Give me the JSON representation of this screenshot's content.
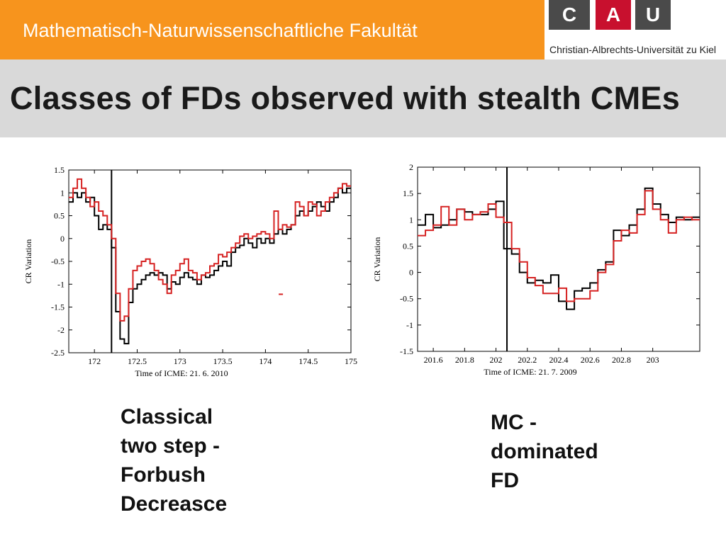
{
  "header": {
    "faculty": "Mathematisch-Naturwissenschaftliche Fakultät",
    "logo_letters": [
      "C",
      "A",
      "U"
    ],
    "university": "Christian-Albrechts-Universität zu Kiel",
    "colors": {
      "orange": "#f7941d",
      "logo_dark": "#4a4a4a",
      "logo_red": "#c8102e"
    }
  },
  "slide_title": "Classes of FDs observed with stealth CMEs",
  "captions": {
    "left": [
      "Classical",
      "two step -",
      "Forbush",
      "Decreasce"
    ],
    "right": [
      "MC -",
      "dominated",
      "FD"
    ]
  },
  "chart_data": [
    {
      "type": "line",
      "xlabel": "Time of ICME: 21. 6. 2010",
      "ylabel": "CR Variation",
      "xlim": [
        171.7,
        175
      ],
      "ylim": [
        -2.5,
        1.5
      ],
      "xticks": [
        172,
        172.5,
        173,
        173.5,
        174,
        174.5,
        175
      ],
      "xtick_labels": [
        "172",
        "172.5",
        "173",
        "173.5",
        "174",
        "174.5",
        "175"
      ],
      "yticks": [
        1.5,
        1,
        0.5,
        0,
        -0.5,
        -1,
        -1.5,
        -2,
        -2.5
      ],
      "ytick_labels": [
        "1.5",
        "1",
        "0.5",
        "0",
        "-0.5",
        "-1",
        "-1.5",
        "-2",
        "-2.5"
      ],
      "vline": 172.2,
      "step": true,
      "colors": [
        "#000000",
        "#d62222"
      ],
      "extra_mark": {
        "x": 174.18,
        "y": -1.22
      },
      "series": [
        {
          "x": [
            171.7,
            171.75,
            171.8,
            171.85,
            171.9,
            171.95,
            172,
            172.05,
            172.1,
            172.15,
            172.2,
            172.25,
            172.3,
            172.35,
            172.4,
            172.45,
            172.5,
            172.55,
            172.6,
            172.65,
            172.7,
            172.75,
            172.8,
            172.85,
            172.9,
            172.95,
            173,
            173.05,
            173.1,
            173.15,
            173.2,
            173.25,
            173.3,
            173.35,
            173.4,
            173.45,
            173.5,
            173.55,
            173.6,
            173.65,
            173.7,
            173.75,
            173.8,
            173.85,
            173.9,
            173.95,
            174,
            174.05,
            174.1,
            174.15,
            174.2,
            174.25,
            174.3,
            174.35,
            174.4,
            174.45,
            174.5,
            174.55,
            174.6,
            174.65,
            174.7,
            174.75,
            174.8,
            174.85,
            174.9,
            174.95
          ],
          "y": [
            0.8,
            1.0,
            0.9,
            1.0,
            0.8,
            0.9,
            0.5,
            0.2,
            0.3,
            0.2,
            -0.2,
            -1.6,
            -2.2,
            -2.3,
            -1.4,
            -1.1,
            -1.0,
            -0.9,
            -0.8,
            -0.75,
            -0.8,
            -0.75,
            -0.8,
            -1.1,
            -0.95,
            -1.0,
            -0.85,
            -0.75,
            -0.85,
            -0.9,
            -1.0,
            -0.8,
            -0.85,
            -0.8,
            -0.7,
            -0.6,
            -0.5,
            -0.6,
            -0.3,
            -0.2,
            -0.15,
            0.0,
            -0.1,
            -0.2,
            0.0,
            -0.1,
            0.0,
            -0.1,
            0.1,
            0.2,
            0.1,
            0.2,
            0.3,
            0.5,
            0.6,
            0.5,
            0.6,
            0.7,
            0.8,
            0.7,
            0.6,
            0.8,
            0.9,
            1.1,
            1.0,
            1.1
          ]
        },
        {
          "x": [
            171.7,
            171.75,
            171.8,
            171.85,
            171.9,
            171.95,
            172,
            172.05,
            172.1,
            172.15,
            172.2,
            172.25,
            172.3,
            172.35,
            172.4,
            172.45,
            172.5,
            172.55,
            172.6,
            172.65,
            172.7,
            172.75,
            172.8,
            172.85,
            172.9,
            172.95,
            173,
            173.05,
            173.1,
            173.15,
            173.2,
            173.25,
            173.3,
            173.35,
            173.4,
            173.45,
            173.5,
            173.55,
            173.6,
            173.65,
            173.7,
            173.75,
            173.8,
            173.85,
            173.9,
            173.95,
            174,
            174.05,
            174.1,
            174.15,
            174.2,
            174.25,
            174.3,
            174.35,
            174.4,
            174.45,
            174.5,
            174.55,
            174.6,
            174.65,
            174.7,
            174.75,
            174.8,
            174.85,
            174.9,
            174.95
          ],
          "y": [
            0.9,
            1.1,
            1.3,
            1.1,
            0.9,
            0.7,
            0.8,
            0.6,
            0.5,
            0.3,
            0.0,
            -1.2,
            -1.8,
            -1.7,
            -1.1,
            -0.7,
            -0.6,
            -0.5,
            -0.45,
            -0.55,
            -0.7,
            -0.9,
            -1.0,
            -1.2,
            -0.8,
            -0.7,
            -0.55,
            -0.45,
            -0.7,
            -0.75,
            -0.9,
            -0.8,
            -0.75,
            -0.6,
            -0.55,
            -0.35,
            -0.4,
            -0.3,
            -0.2,
            -0.1,
            0.05,
            0.1,
            0.0,
            0.05,
            0.1,
            0.15,
            0.1,
            0.0,
            0.6,
            0.2,
            0.3,
            0.25,
            0.3,
            0.8,
            0.7,
            0.5,
            0.8,
            0.75,
            0.5,
            0.6,
            0.8,
            0.9,
            1.0,
            1.1,
            1.2,
            1.15
          ]
        }
      ]
    },
    {
      "type": "line",
      "xlabel": "Time of ICME: 21. 7. 2009",
      "ylabel": "CR Variation",
      "xlim": [
        201.5,
        203.3
      ],
      "ylim": [
        -1.5,
        2
      ],
      "xticks": [
        201.6,
        201.8,
        202,
        202.2,
        202.4,
        202.6,
        202.8,
        203
      ],
      "xtick_labels": [
        "201.6",
        "201.8",
        "202",
        "202.2",
        "202.4",
        "202.6",
        "202.8",
        "203"
      ],
      "yticks": [
        2,
        1.5,
        1,
        0.5,
        0,
        -0.5,
        -1,
        -1.5
      ],
      "ytick_labels": [
        "2",
        "1.5",
        "1",
        "0.5",
        "0",
        "-0.5",
        "-1",
        "-1.5"
      ],
      "vline": 202.07,
      "step": true,
      "colors": [
        "#000000",
        "#d62222"
      ],
      "series": [
        {
          "x": [
            201.5,
            201.55,
            201.6,
            201.65,
            201.7,
            201.75,
            201.8,
            201.85,
            201.9,
            201.95,
            202,
            202.05,
            202.1,
            202.15,
            202.2,
            202.25,
            202.3,
            202.35,
            202.4,
            202.45,
            202.5,
            202.55,
            202.6,
            202.65,
            202.7,
            202.75,
            202.8,
            202.85,
            202.9,
            202.95,
            203,
            203.05,
            203.1,
            203.15,
            203.2,
            203.25
          ],
          "y": [
            0.9,
            1.1,
            0.85,
            0.9,
            1.0,
            1.2,
            1.15,
            1.1,
            1.1,
            1.2,
            1.35,
            0.45,
            0.35,
            0.0,
            -0.2,
            -0.15,
            -0.2,
            -0.05,
            -0.55,
            -0.7,
            -0.35,
            -0.3,
            -0.2,
            0.05,
            0.2,
            0.8,
            0.7,
            0.9,
            1.2,
            1.6,
            1.3,
            1.1,
            0.95,
            1.05,
            1.0,
            1.05
          ]
        },
        {
          "x": [
            201.5,
            201.55,
            201.6,
            201.65,
            201.7,
            201.75,
            201.8,
            201.85,
            201.9,
            201.95,
            202,
            202.05,
            202.1,
            202.15,
            202.2,
            202.25,
            202.3,
            202.35,
            202.4,
            202.45,
            202.5,
            202.55,
            202.6,
            202.65,
            202.7,
            202.75,
            202.8,
            202.85,
            202.9,
            202.95,
            203,
            203.05,
            203.1,
            203.15,
            203.2,
            203.25
          ],
          "y": [
            0.7,
            0.8,
            0.9,
            1.25,
            0.9,
            1.2,
            1.0,
            1.1,
            1.15,
            1.3,
            1.05,
            0.95,
            0.45,
            0.2,
            -0.1,
            -0.25,
            -0.4,
            -0.4,
            -0.3,
            -0.55,
            -0.5,
            -0.5,
            -0.35,
            0.0,
            0.15,
            0.6,
            0.8,
            0.75,
            1.1,
            1.55,
            1.2,
            1.0,
            0.75,
            1.0,
            1.05,
            1.0
          ]
        }
      ]
    }
  ]
}
